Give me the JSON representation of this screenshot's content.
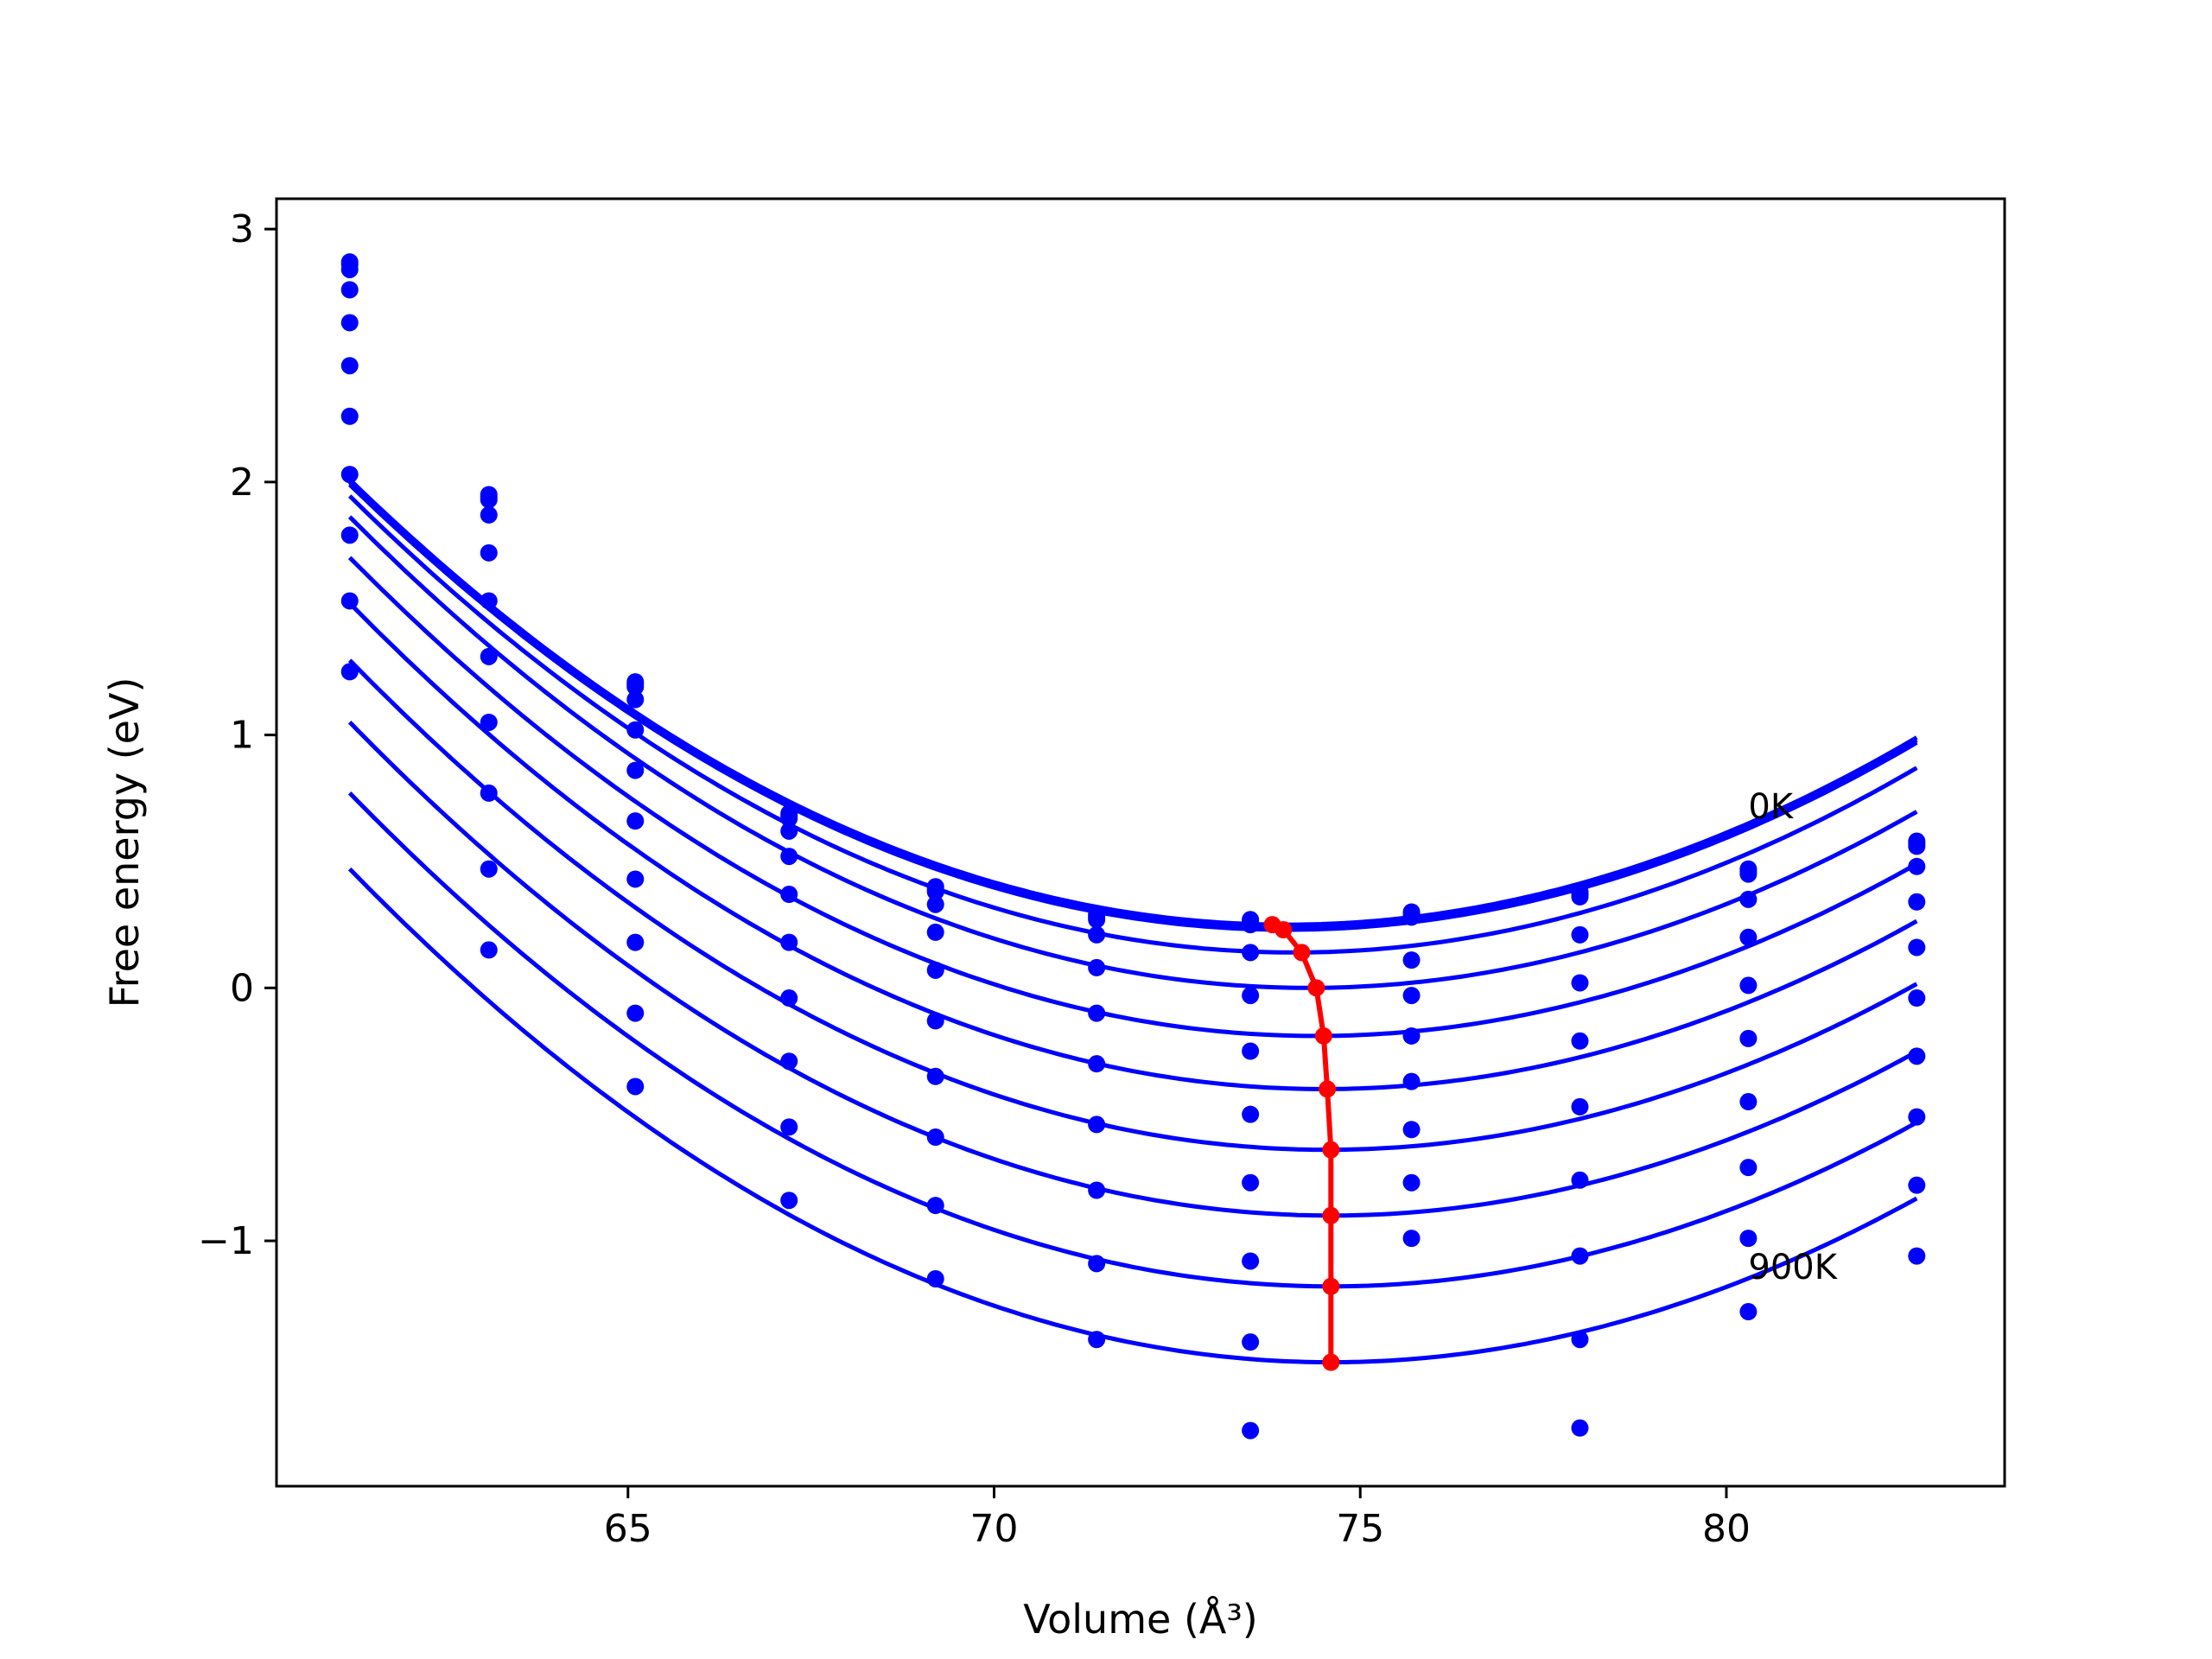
{
  "chart_data": {
    "type": "line",
    "title": "",
    "xlabel": "Volume (Å³)",
    "ylabel": "Free energy (eV)",
    "xlim": [
      60.2,
      83.8
    ],
    "ylim": [
      -1.97,
      3.12
    ],
    "xticks": [
      65,
      70,
      75,
      80
    ],
    "yticks": [
      -1,
      0,
      1,
      2,
      3
    ],
    "xtick_labels": [
      "65",
      "70",
      "75",
      "80"
    ],
    "ytick_labels": [
      "−1",
      "0",
      "1",
      "2",
      "3"
    ],
    "grid": false,
    "legend": "none",
    "annotations": [
      {
        "text": "0K",
        "x": 80.3,
        "y": 0.67
      },
      {
        "text": "900K",
        "x": 80.3,
        "y": -1.15
      }
    ],
    "colors": {
      "series": "#0000ff",
      "minima": "#ff0000"
    },
    "volumes": [
      61.2,
      63.1,
      65.1,
      67.2,
      69.2,
      71.4,
      73.5,
      75.7,
      78.0,
      80.3,
      82.6
    ],
    "series": [
      {
        "values": [
          2.87,
          1.95,
          1.21,
          0.69,
          0.4,
          0.29,
          0.27,
          0.3,
          0.38,
          0.47,
          0.58
        ]
      },
      {
        "values": [
          2.86,
          1.94,
          1.2,
          0.68,
          0.39,
          0.28,
          0.26,
          0.29,
          0.37,
          0.46,
          0.57
        ]
      },
      {
        "values": [
          2.84,
          1.93,
          1.19,
          0.67,
          0.38,
          0.27,
          0.25,
          0.28,
          0.36,
          0.45,
          0.56
        ]
      },
      {
        "values": [
          2.76,
          1.87,
          1.14,
          0.62,
          0.33,
          0.21,
          0.14,
          0.11,
          0.21,
          0.35,
          0.48
        ]
      },
      {
        "values": [
          2.63,
          1.72,
          1.02,
          0.52,
          0.22,
          0.08,
          -0.03,
          -0.03,
          0.02,
          0.2,
          0.34
        ]
      },
      {
        "values": [
          2.46,
          1.53,
          0.86,
          0.37,
          0.07,
          -0.1,
          -0.25,
          -0.19,
          -0.21,
          0.01,
          0.16
        ]
      },
      {
        "values": [
          2.26,
          1.31,
          0.66,
          0.18,
          -0.13,
          -0.3,
          -0.5,
          -0.37,
          -0.47,
          -0.2,
          -0.04
        ]
      },
      {
        "values": [
          2.03,
          1.05,
          0.43,
          -0.04,
          -0.35,
          -0.54,
          -0.77,
          -0.56,
          -0.76,
          -0.45,
          -0.27
        ]
      },
      {
        "values": [
          1.79,
          0.77,
          0.18,
          -0.29,
          -0.59,
          -0.8,
          -1.08,
          -0.77,
          -1.06,
          -0.71,
          -0.51
        ]
      },
      {
        "values": [
          1.53,
          0.47,
          -0.1,
          -0.55,
          -0.86,
          -1.09,
          -1.4,
          -0.99,
          -1.39,
          -0.99,
          -0.78
        ]
      },
      {
        "values": [
          1.25,
          0.15,
          -0.39,
          -0.84,
          -1.15,
          -1.39,
          -1.75,
          null,
          -1.74,
          -1.28,
          -1.06
        ]
      }
    ],
    "fit_curves": [
      {
        "V0": 74.0,
        "E0": 0.25,
        "a": 0.0103,
        "b": -3.45e-05
      },
      {
        "V0": 74.0,
        "E0": 0.24,
        "a": 0.0103,
        "b": -3.45e-05
      },
      {
        "V0": 74.0,
        "E0": 0.23,
        "a": 0.0103,
        "b": -3.45e-05
      },
      {
        "V0": 74.1,
        "E0": 0.14,
        "a": 0.0104,
        "b": -3.45e-05
      },
      {
        "V0": 74.3,
        "E0": 0.0,
        "a": 0.0104,
        "b": -3.45e-05
      },
      {
        "V0": 74.4,
        "E0": -0.19,
        "a": 0.0104,
        "b": -3.45e-05
      },
      {
        "V0": 74.5,
        "E0": -0.4,
        "a": 0.0104,
        "b": -3.45e-05
      },
      {
        "V0": 74.55,
        "E0": -0.64,
        "a": 0.0104,
        "b": -3.45e-05
      },
      {
        "V0": 74.6,
        "E0": -0.9,
        "a": 0.0104,
        "b": -3.45e-05
      },
      {
        "V0": 74.6,
        "E0": -1.18,
        "a": 0.0104,
        "b": -3.45e-05
      },
      {
        "V0": 74.6,
        "E0": -1.48,
        "a": 0.0104,
        "b": -3.45e-05
      }
    ],
    "minima": {
      "x": [
        73.8,
        73.95,
        74.2,
        74.4,
        74.5,
        74.55,
        74.6,
        74.6,
        74.6,
        74.6,
        74.6
      ],
      "y": [
        0.25,
        0.23,
        0.14,
        0.0,
        -0.19,
        -0.4,
        -0.64,
        -0.9,
        -1.18,
        -1.48,
        -1.48
      ]
    }
  }
}
